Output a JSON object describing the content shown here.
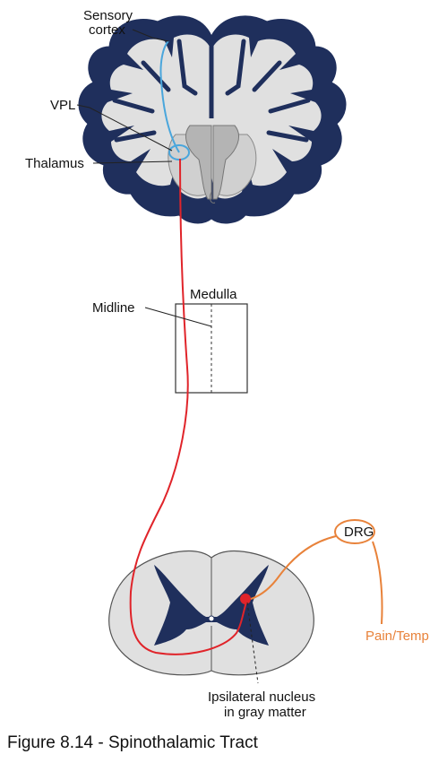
{
  "labels": {
    "sensory_cortex_line1": "Sensory",
    "sensory_cortex_line2": "cortex",
    "vpl": "VPL",
    "thalamus": "Thalamus",
    "medulla": "Medulla",
    "midline": "Midline",
    "drg": "DRG",
    "pain_temp": "Pain/Temp",
    "ipsilateral_line1": "Ipsilateral nucleus",
    "ipsilateral_line2": "in gray matter"
  },
  "caption": "Figure 8.14 - Spinothalamic Tract",
  "colors": {
    "cortex_navy": "#1f2f5c",
    "tissue_gray": "#e0e0e0",
    "ventricle_gray": "#b4b4b4",
    "tract_red": "#e0242a",
    "thalamic_blue": "#4aa6dc",
    "afferent_orange": "#e8823a"
  }
}
